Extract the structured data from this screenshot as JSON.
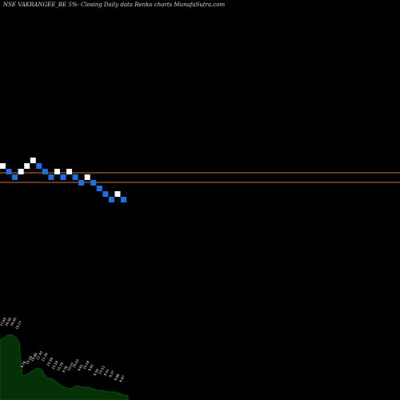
{
  "chart_data": {
    "type": "renko",
    "title": "NSE VAKRANGEE_BE 5%-  Closing Daily data  Renko  charts MunafaSutra.com",
    "price_lines": [
      {
        "name": "upper",
        "color": "#c87030"
      },
      {
        "name": "lower",
        "color": "#c87030"
      }
    ],
    "colors": {
      "up": "#ffffff",
      "down": "#1e6fe0",
      "background": "#000000",
      "volume_fill": "#063006",
      "volume_line": "#0a500a"
    },
    "bricks": [
      {
        "level": 0,
        "dir": "up"
      },
      {
        "level": -1,
        "dir": "down"
      },
      {
        "level": -2,
        "dir": "down"
      },
      {
        "level": -1,
        "dir": "up"
      },
      {
        "level": 0,
        "dir": "up"
      },
      {
        "level": 1,
        "dir": "up"
      },
      {
        "level": 0,
        "dir": "down"
      },
      {
        "level": -1,
        "dir": "down"
      },
      {
        "level": -2,
        "dir": "down"
      },
      {
        "level": -1,
        "dir": "up"
      },
      {
        "level": -2,
        "dir": "down"
      },
      {
        "level": -1,
        "dir": "up"
      },
      {
        "level": -2,
        "dir": "down"
      },
      {
        "level": -3,
        "dir": "down"
      },
      {
        "level": -2,
        "dir": "up"
      },
      {
        "level": -3,
        "dir": "down"
      },
      {
        "level": -4,
        "dir": "down"
      },
      {
        "level": -5,
        "dir": "down"
      },
      {
        "level": -6,
        "dir": "down"
      },
      {
        "level": -5,
        "dir": "up"
      },
      {
        "level": -6,
        "dir": "down"
      }
    ],
    "volume_labels": [
      "17.69",
      "16.90",
      "16.90",
      "16.27",
      "9.76",
      "10.18",
      "10.86",
      "11.40",
      "11.39",
      "10.99",
      "10.59",
      "10.39",
      "9.76",
      "10.07",
      "10.50",
      "9.91",
      "10.18",
      "9.92",
      "9.59",
      "10.51",
      "9.41",
      "9.37",
      "9.86",
      "8.67"
    ]
  }
}
